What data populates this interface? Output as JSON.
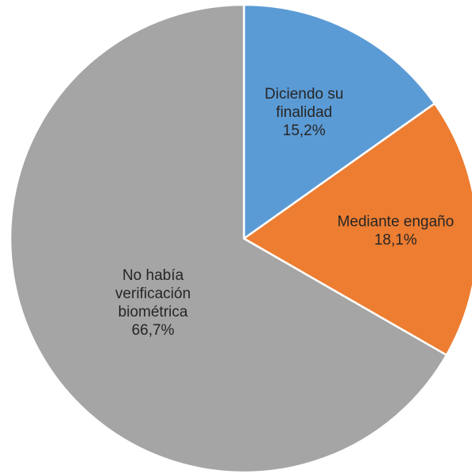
{
  "chart_data": {
    "type": "pie",
    "title": "",
    "series": [
      {
        "values": [
          15.2,
          18.1,
          66.7
        ]
      }
    ],
    "slices": [
      {
        "key": "diciendo",
        "label_lines": [
          "Diciendo su",
          "finalidad"
        ],
        "value": 15.2,
        "value_label": "15,2%",
        "color": "#5b9bd5"
      },
      {
        "key": "mediante",
        "label_lines": [
          "Mediante engaño"
        ],
        "value": 18.1,
        "value_label": "18,1%",
        "color": "#ed7d31"
      },
      {
        "key": "nohabia",
        "label_lines": [
          "No había",
          "verificación",
          "biométrica"
        ],
        "value": 66.7,
        "value_label": "66,7%",
        "color": "#a5a5a5"
      }
    ],
    "start_angle_deg": 0,
    "direction": "clockwise",
    "legend": "none",
    "data_labels": "inside"
  }
}
